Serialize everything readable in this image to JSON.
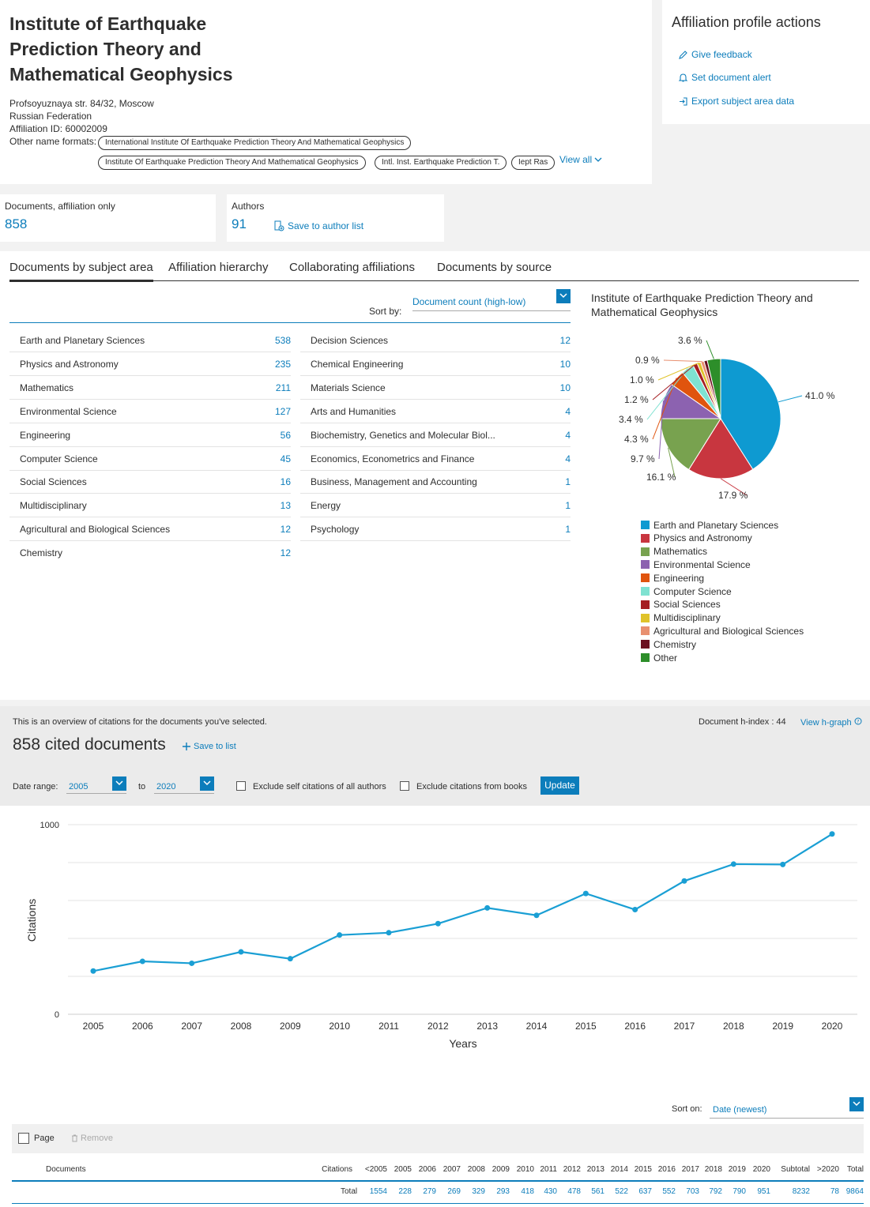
{
  "affiliation": {
    "title": "Institute of Earthquake Prediction Theory and Mathematical Geophysics",
    "address": "Profsoyuznaya str. 84/32, Moscow",
    "country": "Russian Federation",
    "affiliation_id": "Affiliation ID: 60002009",
    "other_name_formats_label": "Other name formats:",
    "other_names": [
      "International Institute Of Earthquake Prediction Theory And Mathematical Geophysics",
      "Institute Of Earthquake Prediction Theory And Mathematical Geophysics",
      "Intl. Inst. Earthquake Prediction T.",
      "Iept Ras"
    ],
    "view_all": "View all"
  },
  "actions": {
    "title": "Affiliation profile actions",
    "give_feedback": "Give feedback",
    "set_alert": "Set document alert",
    "export": "Export subject area data"
  },
  "metrics": {
    "documents_label": "Documents, affiliation only",
    "documents_value": "858",
    "authors_label": "Authors",
    "authors_value": "91",
    "save_to_author_list": "Save to author list"
  },
  "tabs": [
    "Documents by subject area",
    "Affiliation hierarchy",
    "Collaborating affiliations",
    "Documents by source"
  ],
  "sort": {
    "label": "Sort by:",
    "value": "Document count (high-low)"
  },
  "subjects_left": [
    {
      "name": "Earth and Planetary Sciences",
      "count": "538"
    },
    {
      "name": "Physics and Astronomy",
      "count": "235"
    },
    {
      "name": "Mathematics",
      "count": "211"
    },
    {
      "name": "Environmental Science",
      "count": "127"
    },
    {
      "name": "Engineering",
      "count": "56"
    },
    {
      "name": "Computer Science",
      "count": "45"
    },
    {
      "name": "Social Sciences",
      "count": "16"
    },
    {
      "name": "Multidisciplinary",
      "count": "13"
    },
    {
      "name": "Agricultural and Biological Sciences",
      "count": "12"
    },
    {
      "name": "Chemistry",
      "count": "12"
    }
  ],
  "subjects_right": [
    {
      "name": "Decision Sciences",
      "count": "12"
    },
    {
      "name": "Chemical Engineering",
      "count": "10"
    },
    {
      "name": "Materials Science",
      "count": "10"
    },
    {
      "name": "Arts and Humanities",
      "count": "4"
    },
    {
      "name": "Biochemistry, Genetics and Molecular Biol...",
      "count": "4"
    },
    {
      "name": "Economics, Econometrics and Finance",
      "count": "4"
    },
    {
      "name": "Business, Management and Accounting",
      "count": "1"
    },
    {
      "name": "Energy",
      "count": "1"
    },
    {
      "name": "Psychology",
      "count": "1"
    }
  ],
  "pie_title": "Institute of Earthquake Prediction Theory and Mathematical Geophysics",
  "pie_legend": [
    {
      "name": "Earth and Planetary Sciences",
      "color": "#0e9ad1"
    },
    {
      "name": "Physics and Astronomy",
      "color": "#c8363f"
    },
    {
      "name": "Mathematics",
      "color": "#78a24f"
    },
    {
      "name": "Environmental Science",
      "color": "#8c62b0"
    },
    {
      "name": "Engineering",
      "color": "#e0540e"
    },
    {
      "name": "Computer Science",
      "color": "#7fe2d1"
    },
    {
      "name": "Social Sciences",
      "color": "#a51e22"
    },
    {
      "name": "Multidisciplinary",
      "color": "#e0c32a"
    },
    {
      "name": "Agricultural and Biological Sciences",
      "color": "#e89070"
    },
    {
      "name": "Chemistry",
      "color": "#6b1020"
    },
    {
      "name": "Other",
      "color": "#2d8e2a"
    }
  ],
  "citations": {
    "intro": "This is an overview of citations for the documents you've selected.",
    "cited_documents": "858 cited documents",
    "save_to_list": "Save to list",
    "hindex_label": "Document h-index : 44",
    "view_hgraph": "View h-graph",
    "date_range_label": "Date range:",
    "from_year": "2005",
    "to_label": "to",
    "to_year": "2020",
    "exclude_self": "Exclude self citations of all authors",
    "exclude_books": "Exclude citations from books",
    "update": "Update"
  },
  "table": {
    "sort_on_label": "Sort on:",
    "sort_on_value": "Date (newest)",
    "page_label": "Page",
    "remove_label": "Remove",
    "headers": [
      "Documents",
      "Citations",
      "<2005",
      "2005",
      "2006",
      "2007",
      "2008",
      "2009",
      "2010",
      "2011",
      "2012",
      "2013",
      "2014",
      "2015",
      "2016",
      "2017",
      "2018",
      "2019",
      "2020",
      "Subtotal",
      ">2020",
      "Total"
    ],
    "total_label": "Total",
    "totals": [
      "1554",
      "228",
      "279",
      "269",
      "329",
      "293",
      "418",
      "430",
      "478",
      "561",
      "522",
      "637",
      "552",
      "703",
      "792",
      "790",
      "951",
      "8232",
      "78",
      "9864"
    ]
  },
  "chart_data": [
    {
      "type": "pie",
      "title": "Institute of Earthquake Prediction Theory and Mathematical Geophysics",
      "categories": [
        "Earth and Planetary Sciences",
        "Physics and Astronomy",
        "Mathematics",
        "Environmental Science",
        "Engineering",
        "Computer Science",
        "Social Sciences",
        "Multidisciplinary",
        "Agricultural and Biological Sciences",
        "Chemistry",
        "Other"
      ],
      "values": [
        41.0,
        17.9,
        16.1,
        9.7,
        4.3,
        3.4,
        1.2,
        1.0,
        0.9,
        0.9,
        3.6
      ],
      "labels": [
        "41.0 %",
        "17.9 %",
        "16.1 %",
        "9.7 %",
        "4.3 %",
        "3.4 %",
        "1.2 %",
        "1.0 %",
        "0.9 %",
        "",
        "3.6 %"
      ],
      "legend": "below"
    },
    {
      "type": "line",
      "x": [
        "2005",
        "2006",
        "2007",
        "2008",
        "2009",
        "2010",
        "2011",
        "2012",
        "2013",
        "2014",
        "2015",
        "2016",
        "2017",
        "2018",
        "2019",
        "2020"
      ],
      "values": [
        228,
        279,
        269,
        329,
        293,
        418,
        430,
        478,
        561,
        522,
        637,
        552,
        703,
        792,
        790,
        951
      ],
      "xlabel": "Years",
      "ylabel": "Citations",
      "ylim": [
        0,
        1000
      ],
      "yticks_shown": [
        "0",
        "1000"
      ],
      "grid": true,
      "color": "#1a9fd4"
    }
  ]
}
